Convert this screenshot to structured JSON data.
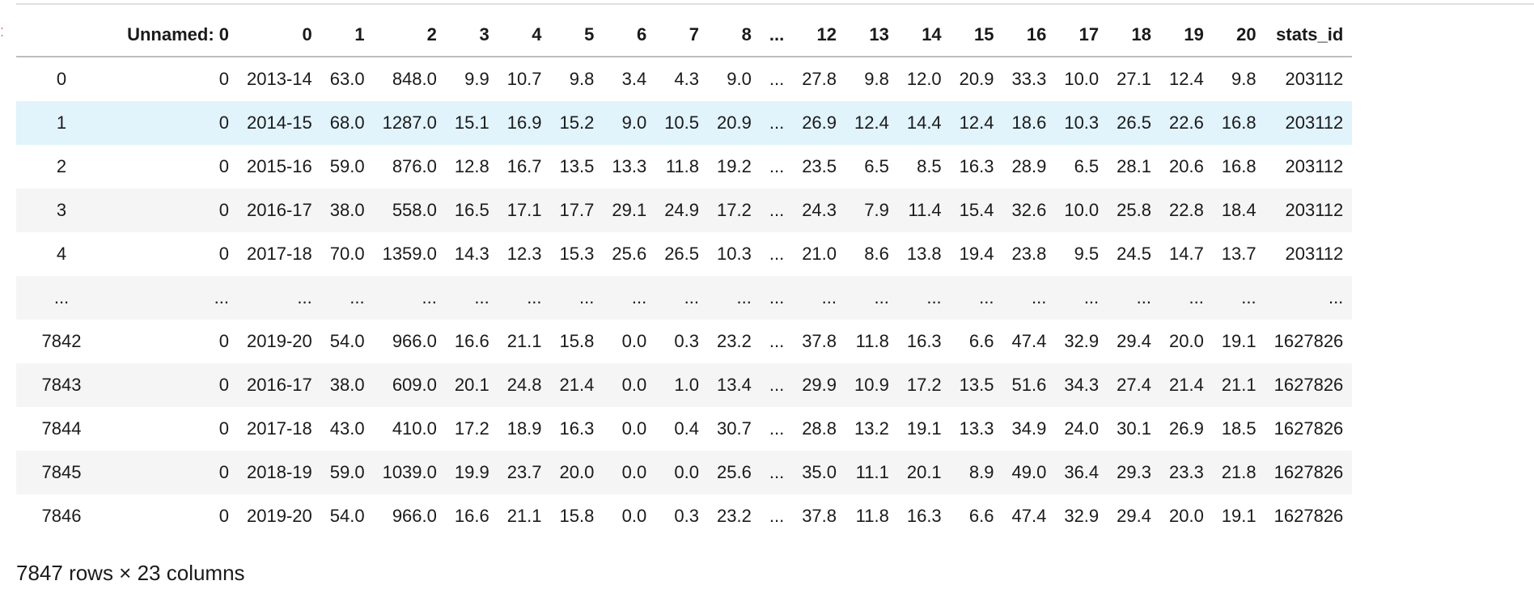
{
  "table": {
    "headers": [
      "",
      "Unnamed: 0",
      "0",
      "1",
      "2",
      "3",
      "4",
      "5",
      "6",
      "7",
      "8",
      "...",
      "12",
      "13",
      "14",
      "15",
      "16",
      "17",
      "18",
      "19",
      "20",
      "stats_id"
    ],
    "rows": [
      [
        "0",
        "0",
        "2013-14",
        "63.0",
        "848.0",
        "9.9",
        "10.7",
        "9.8",
        "3.4",
        "4.3",
        "9.0",
        "...",
        "27.8",
        "9.8",
        "12.0",
        "20.9",
        "33.3",
        "10.0",
        "27.1",
        "12.4",
        "9.8",
        "203112"
      ],
      [
        "1",
        "0",
        "2014-15",
        "68.0",
        "1287.0",
        "15.1",
        "16.9",
        "15.2",
        "9.0",
        "10.5",
        "20.9",
        "...",
        "26.9",
        "12.4",
        "14.4",
        "12.4",
        "18.6",
        "10.3",
        "26.5",
        "22.6",
        "16.8",
        "203112"
      ],
      [
        "2",
        "0",
        "2015-16",
        "59.0",
        "876.0",
        "12.8",
        "16.7",
        "13.5",
        "13.3",
        "11.8",
        "19.2",
        "...",
        "23.5",
        "6.5",
        "8.5",
        "16.3",
        "28.9",
        "6.5",
        "28.1",
        "20.6",
        "16.8",
        "203112"
      ],
      [
        "3",
        "0",
        "2016-17",
        "38.0",
        "558.0",
        "16.5",
        "17.1",
        "17.7",
        "29.1",
        "24.9",
        "17.2",
        "...",
        "24.3",
        "7.9",
        "11.4",
        "15.4",
        "32.6",
        "10.0",
        "25.8",
        "22.8",
        "18.4",
        "203112"
      ],
      [
        "4",
        "0",
        "2017-18",
        "70.0",
        "1359.0",
        "14.3",
        "12.3",
        "15.3",
        "25.6",
        "26.5",
        "10.3",
        "...",
        "21.0",
        "8.6",
        "13.8",
        "19.4",
        "23.8",
        "9.5",
        "24.5",
        "14.7",
        "13.7",
        "203112"
      ],
      [
        "...",
        "...",
        "...",
        "...",
        "...",
        "...",
        "...",
        "...",
        "...",
        "...",
        "...",
        "...",
        "...",
        "...",
        "...",
        "...",
        "...",
        "...",
        "...",
        "...",
        "...",
        "..."
      ],
      [
        "7842",
        "0",
        "2019-20",
        "54.0",
        "966.0",
        "16.6",
        "21.1",
        "15.8",
        "0.0",
        "0.3",
        "23.2",
        "...",
        "37.8",
        "11.8",
        "16.3",
        "6.6",
        "47.4",
        "32.9",
        "29.4",
        "20.0",
        "19.1",
        "1627826"
      ],
      [
        "7843",
        "0",
        "2016-17",
        "38.0",
        "609.0",
        "20.1",
        "24.8",
        "21.4",
        "0.0",
        "1.0",
        "13.4",
        "...",
        "29.9",
        "10.9",
        "17.2",
        "13.5",
        "51.6",
        "34.3",
        "27.4",
        "21.4",
        "21.1",
        "1627826"
      ],
      [
        "7844",
        "0",
        "2017-18",
        "43.0",
        "410.0",
        "17.2",
        "18.9",
        "16.3",
        "0.0",
        "0.4",
        "30.7",
        "...",
        "28.8",
        "13.2",
        "19.1",
        "13.3",
        "34.9",
        "24.0",
        "30.1",
        "26.9",
        "18.5",
        "1627826"
      ],
      [
        "7845",
        "0",
        "2018-19",
        "59.0",
        "1039.0",
        "19.9",
        "23.7",
        "20.0",
        "0.0",
        "0.0",
        "25.6",
        "...",
        "35.0",
        "11.1",
        "20.1",
        "8.9",
        "49.0",
        "36.4",
        "29.3",
        "23.3",
        "21.8",
        "1627826"
      ],
      [
        "7846",
        "0",
        "2019-20",
        "54.0",
        "966.0",
        "16.6",
        "21.1",
        "15.8",
        "0.0",
        "0.3",
        "23.2",
        "...",
        "37.8",
        "11.8",
        "16.3",
        "6.6",
        "47.4",
        "32.9",
        "29.4",
        "20.0",
        "19.1",
        "1627826"
      ]
    ],
    "highlighted_row": 1
  },
  "footer": {
    "shape_text": "7847 rows × 23 columns"
  },
  "colors": {
    "stripe": "#f5f5f5",
    "hover": "#e1f3fb",
    "prompt_accent": "#d9534f"
  }
}
